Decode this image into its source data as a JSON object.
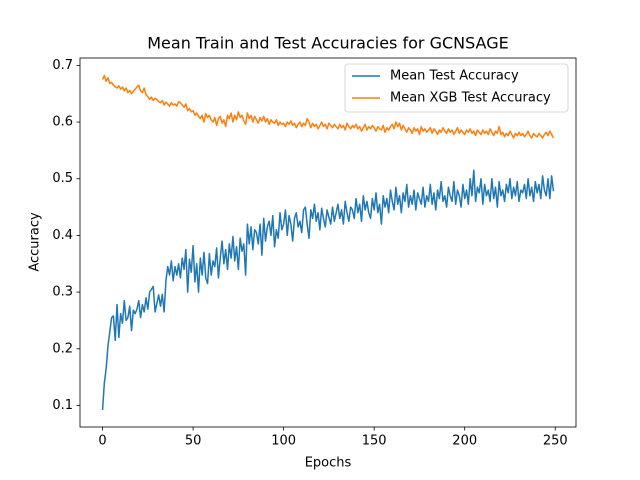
{
  "chart_data": {
    "type": "line",
    "title": "Mean Train and Test Accuracies for GCNSAGE",
    "xlabel": "Epochs",
    "ylabel": "Accuracy",
    "x": [
      0,
      1,
      2,
      3,
      4,
      5,
      6,
      7,
      8,
      9,
      10,
      11,
      12,
      13,
      14,
      15,
      16,
      17,
      18,
      19,
      20,
      21,
      22,
      23,
      24,
      25,
      26,
      27,
      28,
      29,
      30,
      31,
      32,
      33,
      34,
      35,
      36,
      37,
      38,
      39,
      40,
      41,
      42,
      43,
      44,
      45,
      46,
      47,
      48,
      49,
      50,
      51,
      52,
      53,
      54,
      55,
      56,
      57,
      58,
      59,
      60,
      61,
      62,
      63,
      64,
      65,
      66,
      67,
      68,
      69,
      70,
      71,
      72,
      73,
      74,
      75,
      76,
      77,
      78,
      79,
      80,
      81,
      82,
      83,
      84,
      85,
      86,
      87,
      88,
      89,
      90,
      91,
      92,
      93,
      94,
      95,
      96,
      97,
      98,
      99,
      100,
      101,
      102,
      103,
      104,
      105,
      106,
      107,
      108,
      109,
      110,
      111,
      112,
      113,
      114,
      115,
      116,
      117,
      118,
      119,
      120,
      121,
      122,
      123,
      124,
      125,
      126,
      127,
      128,
      129,
      130,
      131,
      132,
      133,
      134,
      135,
      136,
      137,
      138,
      139,
      140,
      141,
      142,
      143,
      144,
      145,
      146,
      147,
      148,
      149,
      150,
      151,
      152,
      153,
      154,
      155,
      156,
      157,
      158,
      159,
      160,
      161,
      162,
      163,
      164,
      165,
      166,
      167,
      168,
      169,
      170,
      171,
      172,
      173,
      174,
      175,
      176,
      177,
      178,
      179,
      180,
      181,
      182,
      183,
      184,
      185,
      186,
      187,
      188,
      189,
      190,
      191,
      192,
      193,
      194,
      195,
      196,
      197,
      198,
      199,
      200,
      201,
      202,
      203,
      204,
      205,
      206,
      207,
      208,
      209,
      210,
      211,
      212,
      213,
      214,
      215,
      216,
      217,
      218,
      219,
      220,
      221,
      222,
      223,
      224,
      225,
      226,
      227,
      228,
      229,
      230,
      231,
      232,
      233,
      234,
      235,
      236,
      237,
      238,
      239,
      240,
      241,
      242,
      243,
      244,
      245,
      246,
      247,
      248,
      249
    ],
    "series": [
      {
        "name": "Mean Test Accuracy",
        "color": "#1f77b4",
        "values": [
          0.092,
          0.14,
          0.165,
          0.205,
          0.23,
          0.255,
          0.258,
          0.215,
          0.278,
          0.22,
          0.262,
          0.245,
          0.285,
          0.25,
          0.255,
          0.275,
          0.232,
          0.268,
          0.262,
          0.27,
          0.285,
          0.255,
          0.278,
          0.265,
          0.29,
          0.27,
          0.3,
          0.305,
          0.31,
          0.265,
          0.28,
          0.295,
          0.275,
          0.296,
          0.265,
          0.32,
          0.345,
          0.33,
          0.355,
          0.32,
          0.345,
          0.33,
          0.35,
          0.325,
          0.36,
          0.34,
          0.375,
          0.3,
          0.358,
          0.335,
          0.382,
          0.318,
          0.35,
          0.3,
          0.36,
          0.33,
          0.37,
          0.325,
          0.315,
          0.368,
          0.33,
          0.355,
          0.345,
          0.378,
          0.325,
          0.36,
          0.39,
          0.35,
          0.375,
          0.34,
          0.385,
          0.36,
          0.398,
          0.355,
          0.38,
          0.34,
          0.395,
          0.372,
          0.385,
          0.33,
          0.42,
          0.385,
          0.415,
          0.375,
          0.41,
          0.405,
          0.385,
          0.42,
          0.365,
          0.43,
          0.39,
          0.415,
          0.425,
          0.4,
          0.435,
          0.38,
          0.41,
          0.395,
          0.44,
          0.41,
          0.42,
          0.445,
          0.4,
          0.435,
          0.42,
          0.39,
          0.43,
          0.44,
          0.415,
          0.425,
          0.405,
          0.445,
          0.45,
          0.42,
          0.395,
          0.445,
          0.43,
          0.455,
          0.425,
          0.44,
          0.41,
          0.448,
          0.43,
          0.415,
          0.445,
          0.432,
          0.42,
          0.45,
          0.425,
          0.44,
          0.455,
          0.43,
          0.445,
          0.42,
          0.46,
          0.44,
          0.425,
          0.45,
          0.445,
          0.43,
          0.465,
          0.44,
          0.455,
          0.425,
          0.47,
          0.445,
          0.46,
          0.44,
          0.43,
          0.465,
          0.445,
          0.475,
          0.44,
          0.455,
          0.42,
          0.47,
          0.45,
          0.465,
          0.44,
          0.48,
          0.46,
          0.445,
          0.485,
          0.455,
          0.47,
          0.44,
          0.475,
          0.46,
          0.49,
          0.45,
          0.47,
          0.455,
          0.48,
          0.445,
          0.475,
          0.465,
          0.455,
          0.485,
          0.45,
          0.47,
          0.46,
          0.49,
          0.455,
          0.475,
          0.445,
          0.48,
          0.465,
          0.495,
          0.46,
          0.47,
          0.45,
          0.485,
          0.47,
          0.46,
          0.495,
          0.455,
          0.48,
          0.47,
          0.45,
          0.49,
          0.465,
          0.48,
          0.455,
          0.5,
          0.47,
          0.515,
          0.46,
          0.485,
          0.475,
          0.5,
          0.455,
          0.49,
          0.47,
          0.48,
          0.46,
          0.5,
          0.465,
          0.485,
          0.45,
          0.495,
          0.47,
          0.48,
          0.46,
          0.49,
          0.475,
          0.5,
          0.465,
          0.485,
          0.47,
          0.495,
          0.46,
          0.48,
          0.475,
          0.49,
          0.465,
          0.5,
          0.47,
          0.485,
          0.46,
          0.495,
          0.475,
          0.49,
          0.465,
          0.505,
          0.48,
          0.47,
          0.5,
          0.465,
          0.505,
          0.478
        ]
      },
      {
        "name": "Mean XGB Test Accuracy",
        "color": "#ff7f0e",
        "values": [
          0.675,
          0.682,
          0.672,
          0.678,
          0.668,
          0.67,
          0.665,
          0.662,
          0.66,
          0.664,
          0.658,
          0.662,
          0.655,
          0.66,
          0.652,
          0.656,
          0.65,
          0.654,
          0.658,
          0.662,
          0.665,
          0.655,
          0.652,
          0.66,
          0.648,
          0.645,
          0.64,
          0.644,
          0.638,
          0.642,
          0.64,
          0.636,
          0.634,
          0.638,
          0.63,
          0.635,
          0.632,
          0.628,
          0.634,
          0.63,
          0.632,
          0.628,
          0.636,
          0.634,
          0.63,
          0.626,
          0.632,
          0.62,
          0.624,
          0.618,
          0.62,
          0.612,
          0.616,
          0.61,
          0.606,
          0.612,
          0.6,
          0.615,
          0.608,
          0.612,
          0.604,
          0.6,
          0.608,
          0.594,
          0.606,
          0.61,
          0.598,
          0.604,
          0.592,
          0.612,
          0.606,
          0.616,
          0.6,
          0.612,
          0.604,
          0.618,
          0.608,
          0.612,
          0.602,
          0.596,
          0.616,
          0.606,
          0.612,
          0.6,
          0.61,
          0.604,
          0.598,
          0.608,
          0.602,
          0.61,
          0.6,
          0.606,
          0.596,
          0.604,
          0.6,
          0.598,
          0.604,
          0.594,
          0.6,
          0.596,
          0.598,
          0.592,
          0.6,
          0.596,
          0.602,
          0.594,
          0.598,
          0.59,
          0.596,
          0.6,
          0.592,
          0.598,
          0.594,
          0.606,
          0.6,
          0.59,
          0.598,
          0.592,
          0.596,
          0.588,
          0.594,
          0.6,
          0.592,
          0.596,
          0.588,
          0.598,
          0.594,
          0.59,
          0.596,
          0.592,
          0.588,
          0.596,
          0.59,
          0.594,
          0.586,
          0.598,
          0.592,
          0.588,
          0.594,
          0.59,
          0.596,
          0.588,
          0.592,
          0.584,
          0.59,
          0.596,
          0.586,
          0.592,
          0.588,
          0.594,
          0.59,
          0.584,
          0.592,
          0.588,
          0.586,
          0.594,
          0.582,
          0.59,
          0.586,
          0.592,
          0.596,
          0.588,
          0.6,
          0.592,
          0.598,
          0.586,
          0.594,
          0.588,
          0.582,
          0.59,
          0.586,
          0.58,
          0.59,
          0.584,
          0.588,
          0.578,
          0.592,
          0.584,
          0.588,
          0.582,
          0.586,
          0.59,
          0.58,
          0.588,
          0.584,
          0.578,
          0.586,
          0.582,
          0.59,
          0.584,
          0.58,
          0.588,
          0.582,
          0.586,
          0.578,
          0.584,
          0.59,
          0.58,
          0.586,
          0.582,
          0.578,
          0.586,
          0.582,
          0.588,
          0.58,
          0.584,
          0.576,
          0.586,
          0.582,
          0.578,
          0.586,
          0.58,
          0.584,
          0.578,
          0.588,
          0.582,
          0.576,
          0.584,
          0.58,
          0.592,
          0.578,
          0.582,
          0.574,
          0.58,
          0.576,
          0.584,
          0.578,
          0.572,
          0.58,
          0.576,
          0.582,
          0.576,
          0.58,
          0.574,
          0.578,
          0.584,
          0.576,
          0.572,
          0.58,
          0.576,
          0.574,
          0.58,
          0.576,
          0.572,
          0.578,
          0.582,
          0.576,
          0.584,
          0.578,
          0.572
        ]
      }
    ],
    "xlim": [
      -12.45,
      261.45
    ],
    "ylim": [
      0.062,
      0.713
    ],
    "xticks": [
      0,
      50,
      100,
      150,
      200,
      250
    ],
    "yticks": [
      0.1,
      0.2,
      0.3,
      0.4,
      0.5,
      0.6,
      0.7
    ],
    "grid": false,
    "legend": "upper right"
  }
}
